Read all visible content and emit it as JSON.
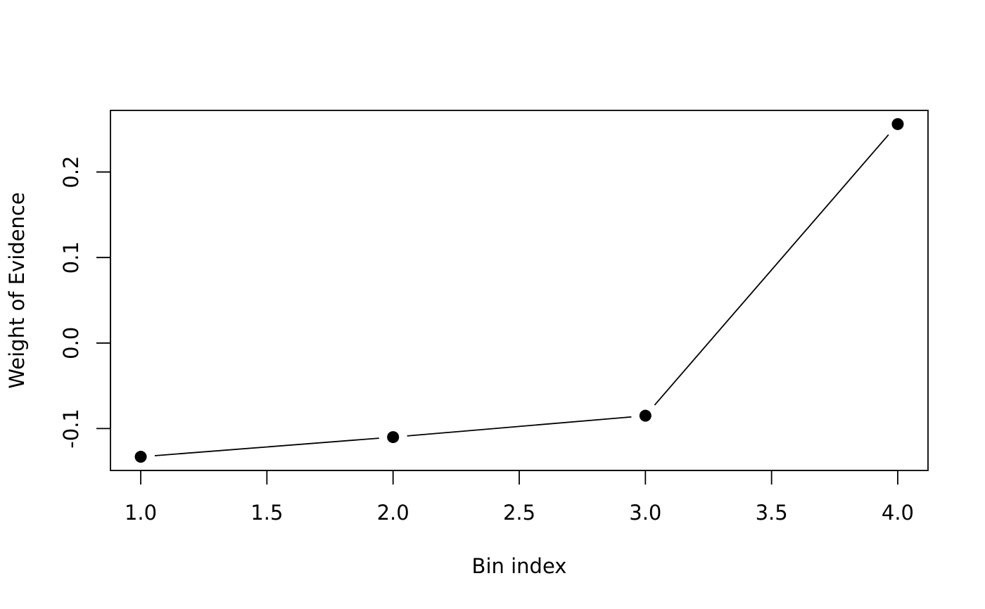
{
  "chart_data": {
    "type": "line",
    "title": "",
    "xlabel": "Bin index",
    "ylabel": "Weight of Evidence",
    "xlim": [
      0.88,
      4.12
    ],
    "ylim": [
      -0.149,
      0.272
    ],
    "x_ticks": [
      1.0,
      1.5,
      2.0,
      2.5,
      3.0,
      3.5,
      4.0
    ],
    "x_tick_labels": [
      "1.0",
      "1.5",
      "2.0",
      "2.5",
      "3.0",
      "3.5",
      "4.0"
    ],
    "y_ticks": [
      -0.1,
      0.0,
      0.1,
      0.2
    ],
    "y_tick_labels": [
      "-0.1",
      "0.0",
      "0.1",
      "0.2"
    ],
    "grid": false,
    "legend": "none",
    "series": [
      {
        "x": [
          1,
          2,
          3,
          4
        ],
        "values": [
          -0.133,
          -0.11,
          -0.085,
          0.256
        ],
        "style": "line-with-points",
        "color": "#000000"
      }
    ]
  }
}
